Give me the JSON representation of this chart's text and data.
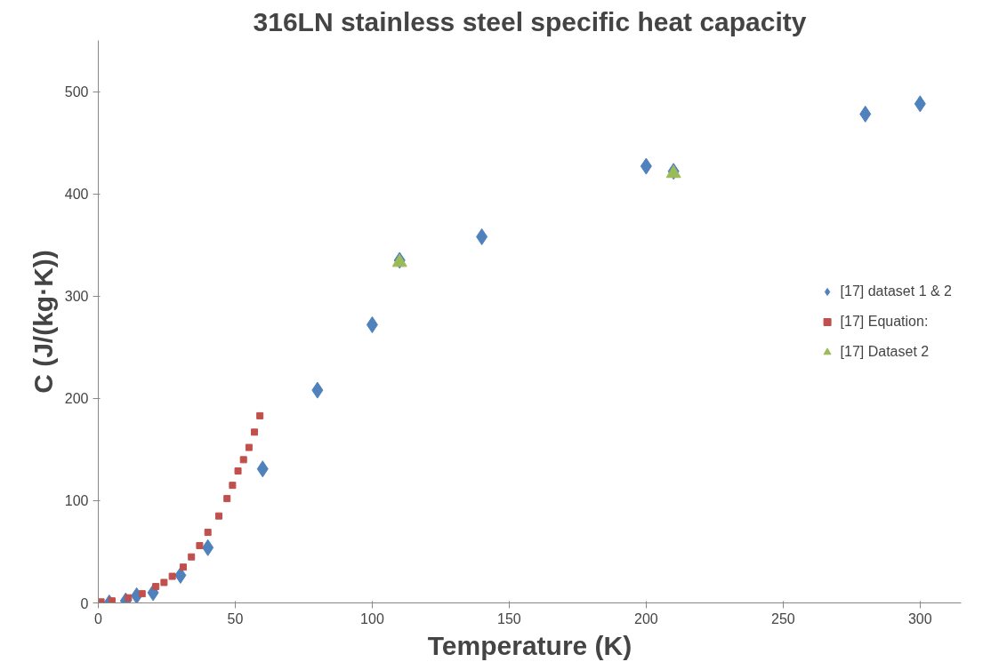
{
  "chart_data": {
    "type": "scatter",
    "title": "316LN stainless steel specific heat capacity",
    "xlabel": "Temperature (K)",
    "ylabel": "C (J/(kg·K))",
    "xlim": [
      0,
      315
    ],
    "ylim": [
      0,
      550
    ],
    "xticks": [
      0,
      50,
      100,
      150,
      200,
      250,
      300
    ],
    "yticks": [
      0,
      100,
      200,
      300,
      400,
      500
    ],
    "grid": false,
    "legend": "right",
    "series": [
      {
        "name": "[17] dataset 1 & 2",
        "color": "#4f81bd",
        "marker": "diamond",
        "x": [
          4,
          10,
          14,
          20,
          30,
          40,
          60,
          80,
          100,
          110,
          140,
          200,
          210,
          280,
          300
        ],
        "values": [
          0,
          2,
          7,
          10,
          27,
          54,
          131,
          208,
          272,
          335,
          358,
          427,
          422,
          478,
          488
        ]
      },
      {
        "name": "[17] Equation:",
        "color": "#c0504d",
        "marker": "square",
        "x": [
          1,
          5,
          11,
          16,
          21,
          24,
          27,
          31,
          34,
          37,
          40,
          44,
          47,
          49,
          51,
          53,
          55,
          57,
          59
        ],
        "values": [
          1,
          2,
          5,
          9,
          16,
          20,
          26,
          35,
          45,
          56,
          69,
          85,
          102,
          115,
          129,
          140,
          152,
          167,
          183
        ]
      },
      {
        "name": "[17] Dataset 2",
        "color": "#9bbb59",
        "marker": "triangle",
        "x": [
          110,
          210
        ],
        "values": [
          333,
          420
        ]
      }
    ]
  }
}
